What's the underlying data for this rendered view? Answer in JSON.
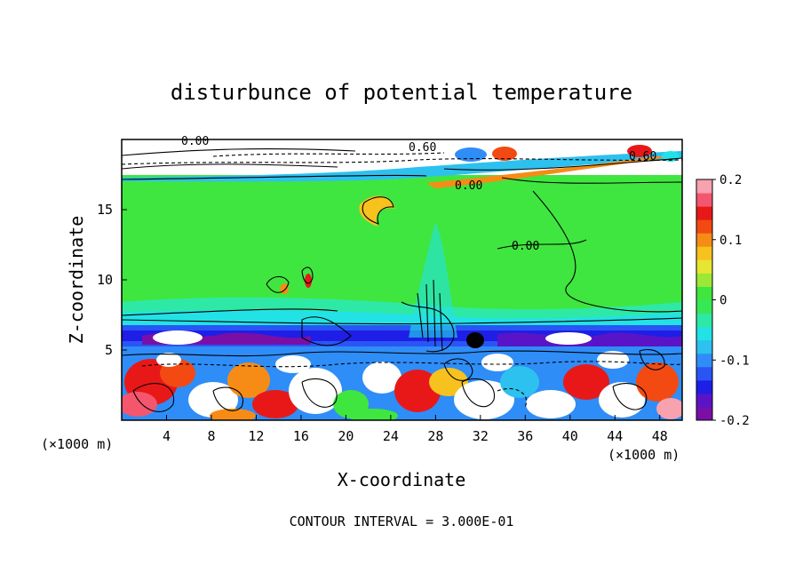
{
  "chart_data": {
    "type": "heatmap",
    "title": "disturbunce of potential temperature",
    "xlabel": "X-coordinate",
    "ylabel": "Z-coordinate",
    "x_unit_left": "(×1000 m)",
    "x_unit_right": "(×1000 m)",
    "xlim": [
      0,
      50
    ],
    "ylim": [
      0,
      20
    ],
    "x_ticks": [
      "4",
      "8",
      "12",
      "16",
      "20",
      "24",
      "28",
      "32",
      "36",
      "40",
      "44",
      "48"
    ],
    "x_tick_values": [
      4,
      8,
      12,
      16,
      20,
      24,
      28,
      32,
      36,
      40,
      44,
      48
    ],
    "y_ticks": [
      "5",
      "10",
      "15"
    ],
    "y_tick_values": [
      5,
      10,
      15
    ],
    "colorbar": {
      "range": [
        -0.2,
        0.2
      ],
      "ticks": [
        "0.2",
        "0.1",
        "0",
        "-0.1",
        "-0.2"
      ],
      "tick_values": [
        0.2,
        0.1,
        0,
        -0.1,
        -0.2
      ],
      "colors": [
        "#7a0fa8",
        "#5a14c8",
        "#1e1ee6",
        "#2a55f5",
        "#2f8df8",
        "#2dc1ef",
        "#22e2e6",
        "#2ee9a6",
        "#36e856",
        "#3fe63f",
        "#9be836",
        "#e6e632",
        "#f7c21e",
        "#f68c16",
        "#f24a12",
        "#e81818",
        "#f4566e",
        "#f7a2ae"
      ]
    },
    "contour_labels": [
      "0.00",
      "0.60",
      "0.00",
      "0.60",
      "0.00"
    ],
    "footer": "CONTOUR INTERVAL = 3.000E-01"
  }
}
